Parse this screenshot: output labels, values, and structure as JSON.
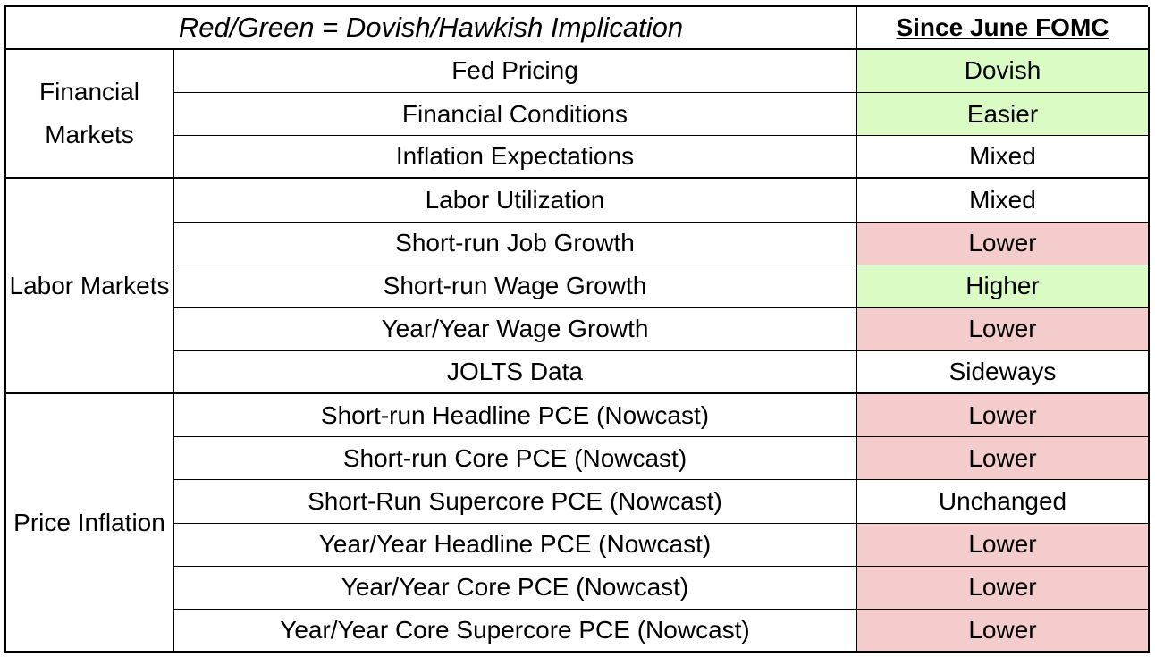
{
  "header": {
    "legend": "Red/Green = Dovish/Hawkish Implication",
    "column_title": "Since June FOMC"
  },
  "colors": {
    "green": "#dafcc4",
    "red": "#f4cccc",
    "neutral": "#ffffff"
  },
  "groups": [
    {
      "label": "Financial Markets",
      "row_start": 2,
      "row_end": 5
    },
    {
      "label": "Labor Markets",
      "row_start": 5,
      "row_end": 10
    },
    {
      "label": "Price Inflation",
      "row_start": 10,
      "row_end": 16
    }
  ],
  "rows": [
    {
      "metric": "Fed Pricing",
      "status": "Dovish",
      "color": "green"
    },
    {
      "metric": "Financial Conditions",
      "status": "Easier",
      "color": "green"
    },
    {
      "metric": "Inflation Expectations",
      "status": "Mixed",
      "color": "neutral"
    },
    {
      "metric": "Labor Utilization",
      "status": "Mixed",
      "color": "neutral"
    },
    {
      "metric": "Short-run Job Growth",
      "status": "Lower",
      "color": "red"
    },
    {
      "metric": "Short-run Wage Growth",
      "status": "Higher",
      "color": "green"
    },
    {
      "metric": "Year/Year Wage Growth",
      "status": "Lower",
      "color": "red"
    },
    {
      "metric": "JOLTS Data",
      "status": "Sideways",
      "color": "neutral"
    },
    {
      "metric": "Short-run Headline PCE (Nowcast)",
      "status": "Lower",
      "color": "red"
    },
    {
      "metric": "Short-run Core PCE (Nowcast)",
      "status": "Lower",
      "color": "red"
    },
    {
      "metric": "Short-Run Supercore PCE (Nowcast)",
      "status": "Unchanged",
      "color": "neutral"
    },
    {
      "metric": "Year/Year Headline PCE (Nowcast)",
      "status": "Lower",
      "color": "red"
    },
    {
      "metric": "Year/Year Core PCE (Nowcast)",
      "status": "Lower",
      "color": "red"
    },
    {
      "metric": "Year/Year Core Supercore PCE (Nowcast)",
      "status": "Lower",
      "color": "red"
    }
  ]
}
